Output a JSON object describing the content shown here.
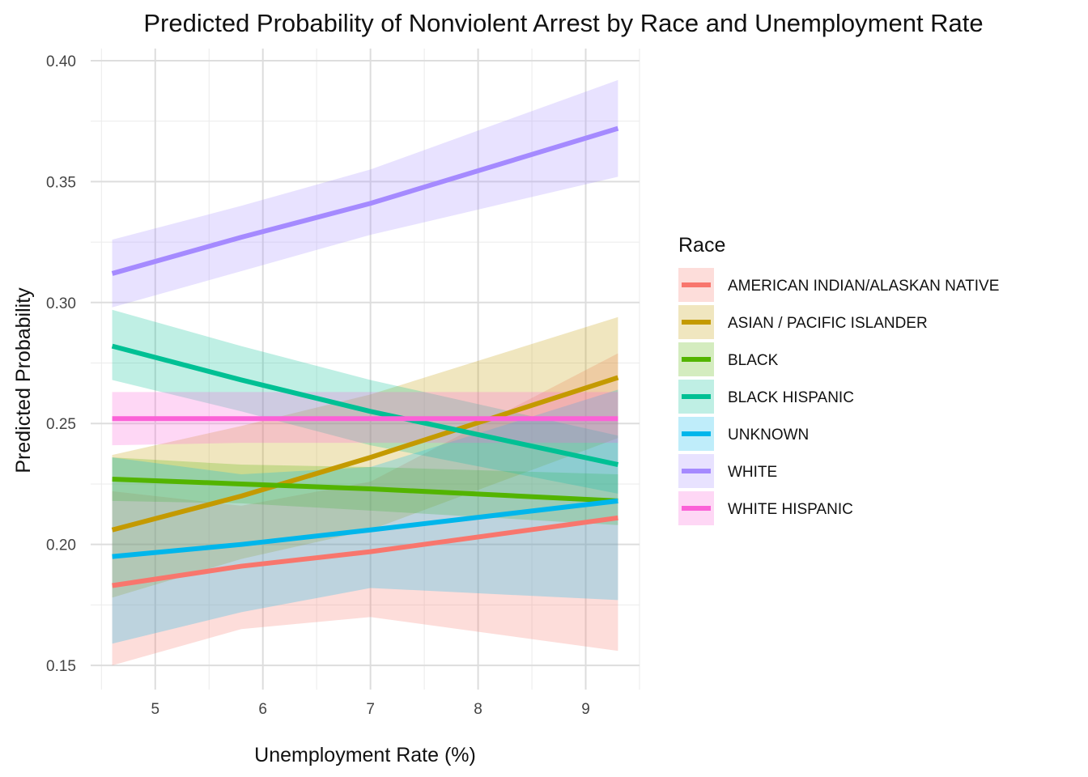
{
  "chart_data": {
    "type": "line",
    "title": "Predicted Probability of Nonviolent Arrest by Race and Unemployment Rate",
    "xlabel": "Unemployment Rate (%)",
    "ylabel": "Predicted Probability",
    "xlim": [
      4.4,
      9.5
    ],
    "ylim": [
      0.14,
      0.405
    ],
    "x_ticks": [
      5,
      6,
      7,
      8,
      9
    ],
    "y_ticks": [
      0.15,
      0.2,
      0.25,
      0.3,
      0.35,
      0.4
    ],
    "y_tick_labels": [
      "0.15",
      "0.20",
      "0.25",
      "0.30",
      "0.35",
      "0.40"
    ],
    "grid": true,
    "legend": {
      "title": "Race",
      "position": "right"
    },
    "x": [
      4.6,
      5.8,
      7.0,
      9.3
    ],
    "series": [
      {
        "name": "AMERICAN INDIAN/ALASKAN NATIVE",
        "color": "#F8766D",
        "values": [
          0.183,
          0.191,
          0.197,
          0.211
        ],
        "lower": [
          0.15,
          0.165,
          0.17,
          0.156
        ],
        "upper": [
          0.222,
          0.216,
          0.226,
          0.279
        ]
      },
      {
        "name": "ASIAN / PACIFIC ISLANDER",
        "color": "#C49A00",
        "values": [
          0.206,
          0.22,
          0.236,
          0.269
        ],
        "lower": [
          0.178,
          0.194,
          0.206,
          0.244
        ],
        "upper": [
          0.237,
          0.249,
          0.262,
          0.294
        ]
      },
      {
        "name": "BLACK",
        "color": "#53B400",
        "values": [
          0.227,
          0.225,
          0.223,
          0.218
        ],
        "lower": [
          0.218,
          0.217,
          0.214,
          0.208
        ],
        "upper": [
          0.236,
          0.233,
          0.232,
          0.229
        ]
      },
      {
        "name": "BLACK HISPANIC",
        "color": "#00C094",
        "values": [
          0.282,
          0.268,
          0.255,
          0.233
        ],
        "lower": [
          0.268,
          0.255,
          0.241,
          0.221
        ],
        "upper": [
          0.297,
          0.282,
          0.268,
          0.245
        ]
      },
      {
        "name": "UNKNOWN",
        "color": "#00B6EB",
        "values": [
          0.195,
          0.2,
          0.206,
          0.218
        ],
        "lower": [
          0.159,
          0.172,
          0.182,
          0.177
        ],
        "upper": [
          0.236,
          0.229,
          0.232,
          0.264
        ]
      },
      {
        "name": "WHITE",
        "color": "#A58AFF",
        "values": [
          0.312,
          0.327,
          0.341,
          0.372
        ],
        "lower": [
          0.298,
          0.313,
          0.328,
          0.352
        ],
        "upper": [
          0.326,
          0.34,
          0.355,
          0.392
        ]
      },
      {
        "name": "WHITE HISPANIC",
        "color": "#FB61D7",
        "values": [
          0.252,
          0.252,
          0.252,
          0.252
        ],
        "lower": [
          0.241,
          0.242,
          0.242,
          0.242
        ],
        "upper": [
          0.263,
          0.263,
          0.263,
          0.263
        ]
      }
    ],
    "band_opacity": 0.25
  }
}
